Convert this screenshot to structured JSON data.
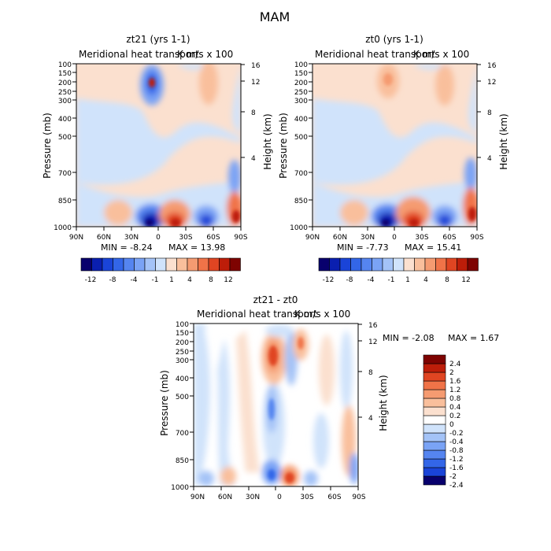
{
  "figure": {
    "title": "MAM",
    "field_label": "Meridional heat transport",
    "units_label": "K m/s x 100",
    "ylabel_left": "Pressure (mb)",
    "ylabel_right": "Height (km)"
  },
  "chart_data": [
    {
      "type": "heatmap",
      "panel": "zt21",
      "title": "zt21 (yrs 1-1)",
      "subtitle": "Meridional heat transport",
      "units": "K m/s x 100",
      "x_ticks": [
        "90N",
        "60N",
        "30N",
        "0",
        "30S",
        "60S",
        "90S"
      ],
      "y_ticks": [
        "100",
        "150",
        "200",
        "250",
        "300",
        "400",
        "500",
        "700",
        "850",
        "1000"
      ],
      "y2_ticks": [
        "16",
        "12",
        "8",
        "4"
      ],
      "min_label": "MIN = -8.24",
      "max_label": "MAX = 13.98",
      "colorbar_ticks": [
        "-12",
        "-8",
        "-4",
        "-1",
        "1",
        "4",
        "8",
        "12"
      ],
      "colorbar_levels": [
        -14,
        -12,
        -10,
        -8,
        -6,
        -4,
        -2,
        -1,
        1,
        2,
        4,
        6,
        8,
        10,
        12,
        14
      ]
    },
    {
      "type": "heatmap",
      "panel": "zt0",
      "title": "zt0 (yrs 1-1)",
      "subtitle": "Meridional heat transport",
      "units": "K m/s x 100",
      "x_ticks": [
        "90N",
        "60N",
        "30N",
        "0",
        "30S",
        "60S",
        "90S"
      ],
      "y_ticks": [
        "100",
        "150",
        "200",
        "250",
        "300",
        "400",
        "500",
        "700",
        "850",
        "1000"
      ],
      "y2_ticks": [
        "16",
        "12",
        "8",
        "4"
      ],
      "min_label": "MIN = -7.73",
      "max_label": "MAX = 15.41",
      "colorbar_ticks": [
        "-12",
        "-8",
        "-4",
        "-1",
        "1",
        "4",
        "8",
        "12"
      ],
      "colorbar_levels": [
        -14,
        -12,
        -10,
        -8,
        -6,
        -4,
        -2,
        -1,
        1,
        2,
        4,
        6,
        8,
        10,
        12,
        14
      ]
    },
    {
      "type": "heatmap",
      "panel": "diff",
      "title": "zt21 - zt0",
      "subtitle": "Meridional heat transport",
      "units": "K m/s x 100",
      "x_ticks": [
        "90N",
        "60N",
        "30N",
        "0",
        "30S",
        "60S",
        "90S"
      ],
      "y_ticks": [
        "100",
        "150",
        "200",
        "250",
        "300",
        "400",
        "500",
        "700",
        "850",
        "1000"
      ],
      "y2_ticks": [
        "16",
        "12",
        "8",
        "4"
      ],
      "min_label": "MIN = -2.08",
      "max_label": "MAX = 1.67",
      "colorbar_ticks": [
        "2.4",
        "2",
        "1.6",
        "1.2",
        "0.8",
        "0.4",
        "0.2",
        "0",
        "-0.2",
        "-0.4",
        "-0.8",
        "-1.2",
        "-1.6",
        "-2",
        "-2.4"
      ]
    }
  ],
  "colors": {
    "seq_top": [
      "#08006d",
      "#0a1fb0",
      "#1a44d8",
      "#3366e8",
      "#5585f0",
      "#7aa3f5",
      "#a4c3f7",
      "#d0e3fb",
      "#fbe0cf",
      "#f9bf9c",
      "#f59b71",
      "#f07348",
      "#e04522",
      "#bd1d09",
      "#7e0301"
    ],
    "seq_diff": [
      "#7e0301",
      "#bd1d09",
      "#e04522",
      "#f07348",
      "#f59b71",
      "#f9bf9c",
      "#fbe0cf",
      "#ffffff",
      "#d0e3fb",
      "#a4c3f7",
      "#7aa3f5",
      "#5585f0",
      "#3366e8",
      "#1a44d8",
      "#08006d"
    ]
  }
}
